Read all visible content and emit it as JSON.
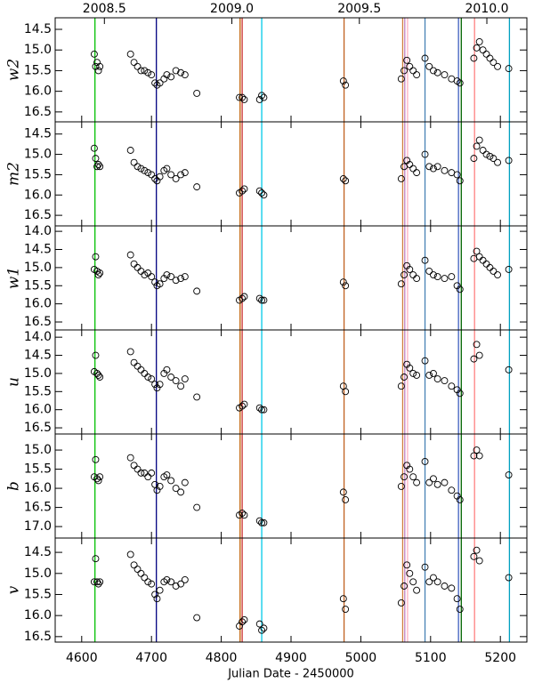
{
  "xlabel": "Julian Date - 2450000",
  "xlim": [
    4562,
    5238
  ],
  "xticks": [
    4600,
    4700,
    4800,
    4900,
    5000,
    5100,
    5200
  ],
  "x2lim": [
    2008.307,
    2010.157
  ],
  "x2ticks": [
    2008.5,
    {
      "value": 2009.0,
      "label": "2009.0"
    },
    2009.5,
    {
      "value": 2010.0,
      "label": "2010.0"
    }
  ],
  "invert_y": true,
  "marker_color": "#000000",
  "vlines": [
    {
      "x": 4619,
      "color": "#00c000"
    },
    {
      "x": 4707,
      "color": "#000080"
    },
    {
      "x": 4827,
      "color": "#c06000"
    },
    {
      "x": 4830,
      "color": "#cc3333"
    },
    {
      "x": 4858,
      "color": "#00c8e8"
    },
    {
      "x": 4976,
      "color": "#c06020"
    },
    {
      "x": 5060,
      "color": "#d08040"
    },
    {
      "x": 5063,
      "color": "#c080c0"
    },
    {
      "x": 5067,
      "color": "#ffb0c0"
    },
    {
      "x": 5092,
      "color": "#4682b4"
    },
    {
      "x": 5140,
      "color": "#4060c0"
    },
    {
      "x": 5144,
      "color": "#006400"
    },
    {
      "x": 5163,
      "color": "#ff8080"
    },
    {
      "x": 5213,
      "color": "#00a0c0"
    }
  ],
  "chart_data": [
    {
      "type": "scatter",
      "ylabel": "w2",
      "ylim": [
        14.22,
        16.74
      ],
      "yticks": [
        14.5,
        {
          "value": 15.0,
          "label": "15.0"
        },
        15.5,
        {
          "value": 16.0,
          "label": "16.0"
        },
        16.5
      ],
      "x": [
        4618,
        4620,
        4622,
        4624,
        4626,
        4670,
        4675,
        4680,
        4685,
        4690,
        4695,
        4700,
        4705,
        4708,
        4712,
        4718,
        4722,
        4728,
        4735,
        4742,
        4748,
        4765,
        4826,
        4830,
        4833,
        4855,
        4858,
        4861,
        4975,
        4978,
        5058,
        5062,
        5066,
        5070,
        5075,
        5080,
        5092,
        5098,
        5104,
        5110,
        5120,
        5130,
        5138,
        5142,
        5162,
        5166,
        5170,
        5175,
        5180,
        5185,
        5190,
        5196,
        5212
      ],
      "values": [
        15.1,
        15.4,
        15.3,
        15.5,
        15.4,
        15.1,
        15.3,
        15.4,
        15.5,
        15.5,
        15.55,
        15.6,
        15.8,
        15.85,
        15.8,
        15.7,
        15.6,
        15.65,
        15.5,
        15.55,
        15.6,
        16.05,
        16.15,
        16.15,
        16.2,
        16.2,
        16.1,
        16.15,
        15.75,
        15.85,
        15.7,
        15.5,
        15.25,
        15.4,
        15.5,
        15.6,
        15.2,
        15.4,
        15.5,
        15.55,
        15.6,
        15.7,
        15.75,
        15.8,
        15.2,
        14.95,
        14.8,
        15.0,
        15.1,
        15.2,
        15.3,
        15.4,
        15.45
      ]
    },
    {
      "type": "scatter",
      "ylabel": "m2",
      "ylim": [
        14.2,
        16.76
      ],
      "yticks": [
        14.5,
        {
          "value": 15.0,
          "label": "15.0"
        },
        15.5,
        {
          "value": 16.0,
          "label": "16.0"
        },
        16.5
      ],
      "x": [
        4618,
        4620,
        4622,
        4624,
        4626,
        4670,
        4675,
        4680,
        4685,
        4690,
        4695,
        4700,
        4705,
        4708,
        4712,
        4718,
        4722,
        4728,
        4735,
        4742,
        4748,
        4765,
        4826,
        4830,
        4833,
        4855,
        4858,
        4861,
        4975,
        4978,
        5058,
        5062,
        5066,
        5070,
        5075,
        5080,
        5092,
        5098,
        5104,
        5110,
        5120,
        5130,
        5138,
        5142,
        5162,
        5166,
        5170,
        5175,
        5180,
        5185,
        5190,
        5196,
        5212
      ],
      "values": [
        14.85,
        15.1,
        15.3,
        15.25,
        15.3,
        14.9,
        15.2,
        15.3,
        15.35,
        15.4,
        15.45,
        15.5,
        15.6,
        15.65,
        15.55,
        15.4,
        15.35,
        15.5,
        15.6,
        15.5,
        15.45,
        15.8,
        15.95,
        15.9,
        15.85,
        15.9,
        15.95,
        16.0,
        15.6,
        15.65,
        15.6,
        15.3,
        15.15,
        15.25,
        15.35,
        15.45,
        15.0,
        15.3,
        15.35,
        15.3,
        15.4,
        15.45,
        15.5,
        15.65,
        15.1,
        14.8,
        14.65,
        14.9,
        15.0,
        15.05,
        15.1,
        15.2,
        15.15
      ]
    },
    {
      "type": "scatter",
      "ylabel": "w1",
      "ylim": [
        13.85,
        16.72
      ],
      "yticks": [
        {
          "value": 14.0,
          "label": "14.0"
        },
        14.5,
        {
          "value": 15.0,
          "label": "15.0"
        },
        15.5,
        {
          "value": 16.0,
          "label": "16.0"
        },
        16.5
      ],
      "x": [
        4618,
        4620,
        4622,
        4624,
        4626,
        4670,
        4675,
        4680,
        4685,
        4690,
        4695,
        4700,
        4705,
        4708,
        4712,
        4718,
        4722,
        4728,
        4735,
        4742,
        4748,
        4765,
        4826,
        4830,
        4833,
        4855,
        4858,
        4861,
        4975,
        4978,
        5058,
        5062,
        5066,
        5070,
        5075,
        5080,
        5092,
        5098,
        5104,
        5110,
        5120,
        5130,
        5138,
        5142,
        5162,
        5166,
        5170,
        5175,
        5180,
        5185,
        5190,
        5196,
        5212
      ],
      "values": [
        15.05,
        14.7,
        15.1,
        15.2,
        15.15,
        14.65,
        14.9,
        15.0,
        15.1,
        15.2,
        15.15,
        15.25,
        15.4,
        15.5,
        15.45,
        15.3,
        15.2,
        15.25,
        15.35,
        15.3,
        15.25,
        15.65,
        15.9,
        15.85,
        15.8,
        15.85,
        15.9,
        15.9,
        15.4,
        15.5,
        15.45,
        15.2,
        14.95,
        15.05,
        15.2,
        15.3,
        14.8,
        15.1,
        15.2,
        15.25,
        15.3,
        15.25,
        15.5,
        15.6,
        14.75,
        14.55,
        14.7,
        14.8,
        14.9,
        15.0,
        15.1,
        15.2,
        15.05
      ]
    },
    {
      "type": "scatter",
      "ylabel": "u",
      "ylim": [
        13.8,
        16.67
      ],
      "yticks": [
        {
          "value": 14.0,
          "label": "14.0"
        },
        14.5,
        {
          "value": 15.0,
          "label": "15.0"
        },
        15.5,
        {
          "value": 16.0,
          "label": "16.0"
        },
        16.5
      ],
      "x": [
        4618,
        4620,
        4622,
        4624,
        4626,
        4670,
        4675,
        4680,
        4685,
        4690,
        4695,
        4700,
        4705,
        4708,
        4712,
        4718,
        4722,
        4728,
        4735,
        4742,
        4748,
        4765,
        4826,
        4830,
        4833,
        4855,
        4858,
        4861,
        4975,
        4978,
        5058,
        5062,
        5066,
        5070,
        5075,
        5080,
        5092,
        5098,
        5104,
        5110,
        5120,
        5130,
        5138,
        5142,
        5162,
        5166,
        5170,
        5175,
        5180,
        5185,
        5190,
        5196,
        5212
      ],
      "values": [
        14.95,
        14.5,
        15.0,
        15.05,
        15.1,
        14.4,
        14.7,
        14.8,
        14.9,
        15.0,
        15.1,
        15.15,
        15.3,
        15.4,
        15.3,
        15.0,
        14.9,
        15.1,
        15.2,
        15.35,
        15.15,
        15.65,
        15.95,
        15.9,
        15.85,
        15.95,
        16.0,
        16.0,
        15.35,
        15.5,
        15.35,
        15.1,
        14.75,
        14.85,
        15.0,
        15.05,
        14.65,
        15.05,
        15.0,
        15.15,
        15.2,
        15.35,
        15.45,
        15.55,
        14.6,
        14.2,
        14.5,
        null,
        null,
        null,
        null,
        null,
        14.9
      ]
    },
    {
      "type": "scatter",
      "ylabel": "b",
      "ylim": [
        14.58,
        17.3
      ],
      "yticks": [
        {
          "value": 15.0,
          "label": "15.0"
        },
        15.5,
        {
          "value": 16.0,
          "label": "16.0"
        },
        16.5,
        {
          "value": 17.0,
          "label": "17.0"
        }
      ],
      "x": [
        4618,
        4620,
        4622,
        4624,
        4626,
        4670,
        4675,
        4680,
        4685,
        4690,
        4695,
        4700,
        4705,
        4708,
        4712,
        4718,
        4722,
        4728,
        4735,
        4742,
        4748,
        4765,
        4826,
        4830,
        4833,
        4855,
        4858,
        4861,
        4975,
        4978,
        5058,
        5062,
        5066,
        5070,
        5075,
        5080,
        5092,
        5098,
        5104,
        5110,
        5120,
        5130,
        5138,
        5142,
        5162,
        5166,
        5170,
        5175,
        5180,
        5185,
        5190,
        5196,
        5212
      ],
      "values": [
        15.7,
        15.25,
        15.75,
        15.8,
        15.7,
        15.2,
        15.4,
        15.5,
        15.6,
        15.6,
        15.7,
        15.6,
        15.9,
        16.05,
        15.95,
        15.7,
        15.65,
        15.8,
        16.0,
        16.1,
        15.85,
        16.5,
        16.7,
        16.65,
        16.7,
        16.85,
        16.9,
        16.9,
        16.1,
        16.3,
        15.95,
        15.7,
        15.4,
        15.5,
        15.7,
        15.85,
        15.3,
        15.85,
        15.75,
        15.9,
        15.85,
        16.05,
        16.2,
        16.3,
        15.15,
        15.0,
        15.15,
        null,
        null,
        null,
        null,
        null,
        15.65
      ]
    },
    {
      "type": "scatter",
      "ylabel": "v",
      "ylim": [
        14.16,
        16.63
      ],
      "yticks": [
        14.5,
        {
          "value": 15.0,
          "label": "15.0"
        },
        15.5,
        {
          "value": 16.0,
          "label": "16.0"
        },
        16.5
      ],
      "x": [
        4618,
        4620,
        4622,
        4624,
        4626,
        4670,
        4675,
        4680,
        4685,
        4690,
        4695,
        4700,
        4705,
        4708,
        4712,
        4718,
        4722,
        4728,
        4735,
        4742,
        4748,
        4765,
        4826,
        4830,
        4833,
        4855,
        4858,
        4861,
        4975,
        4978,
        5058,
        5062,
        5066,
        5070,
        5075,
        5080,
        5092,
        5098,
        5104,
        5110,
        5120,
        5130,
        5138,
        5142,
        5162,
        5166,
        5170,
        5175,
        5180,
        5185,
        5190,
        5196,
        5212
      ],
      "values": [
        15.2,
        14.65,
        15.2,
        15.25,
        15.2,
        14.55,
        14.8,
        14.9,
        15.0,
        15.1,
        15.2,
        15.25,
        15.5,
        15.6,
        15.4,
        15.2,
        15.15,
        15.2,
        15.3,
        15.25,
        15.15,
        16.05,
        16.25,
        16.15,
        16.1,
        16.2,
        16.35,
        16.3,
        15.6,
        15.85,
        15.7,
        15.3,
        14.8,
        15.0,
        15.2,
        15.4,
        14.85,
        15.2,
        15.1,
        15.2,
        15.3,
        15.35,
        15.6,
        15.85,
        14.6,
        14.45,
        14.7,
        null,
        null,
        null,
        null,
        null,
        15.1
      ]
    }
  ]
}
